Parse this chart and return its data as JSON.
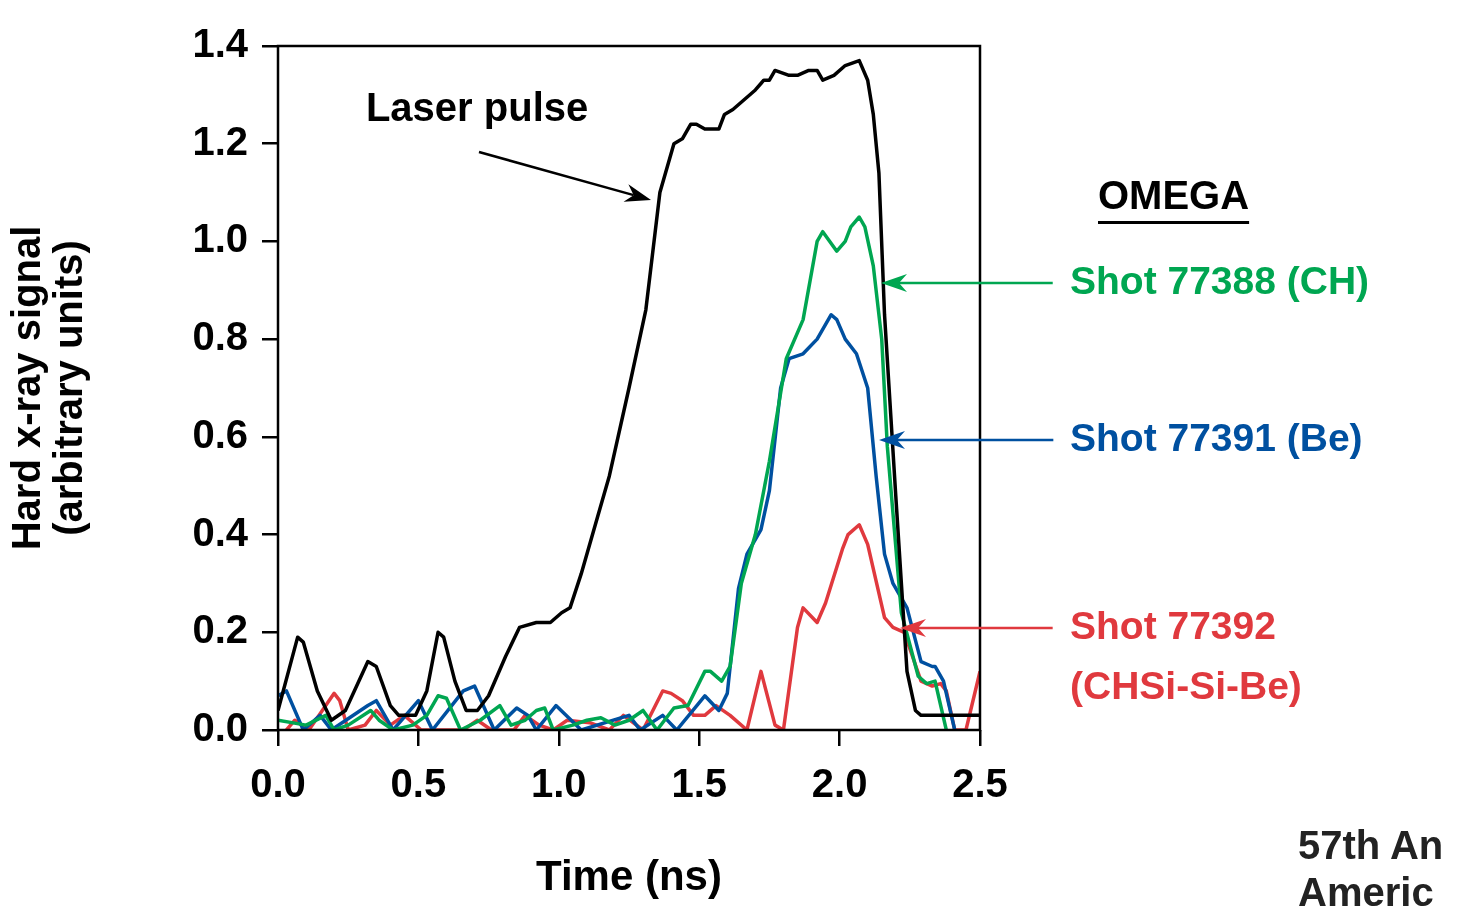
{
  "chart_data": {
    "type": "line",
    "xlabel": "Time (ns)",
    "ylabel": "Hard x-ray signal\n(arbitrary units)",
    "legend_title": "OMEGA",
    "xlim": [
      0,
      2.5
    ],
    "xticks": [
      {
        "value": 0,
        "label": "0.0"
      },
      0.5,
      {
        "value": 1,
        "label": "1.0"
      },
      1.5,
      {
        "value": 2,
        "label": "2.0"
      },
      2.5
    ],
    "ylim": [
      0,
      1.4
    ],
    "yticks": [
      {
        "value": 0,
        "label": "0.0"
      },
      0.2,
      0.4,
      0.6,
      0.8,
      {
        "value": 1,
        "label": "1.0"
      },
      1.2,
      1.4
    ],
    "marker": "none",
    "line_style": "solid",
    "legend": "right",
    "annotations": [
      {
        "text": "Laser pulse",
        "x": 1.35,
        "y": 1.08
      },
      "57th An",
      "Americ"
    ],
    "series": [
      {
        "color": "#000000",
        "x": [
          0,
          0.07,
          0.09,
          0.14,
          0.19,
          0.24,
          0.32,
          0.35,
          0.4,
          0.43,
          0.49,
          0.53,
          0.57,
          0.59,
          0.63,
          0.67,
          0.71,
          0.75,
          0.81,
          0.86,
          0.92,
          0.97,
          1.01,
          1.04,
          1.08,
          1.14,
          1.18,
          1.25,
          1.31,
          1.36,
          1.41,
          1.44,
          1.47,
          1.49,
          1.52,
          1.57,
          1.59,
          1.62,
          1.66,
          1.7,
          1.73,
          1.75,
          1.77,
          1.82,
          1.85,
          1.89,
          1.92,
          1.94,
          1.98,
          2.02,
          2.07,
          2.1,
          2.12,
          2.14,
          2.16,
          2.2,
          2.24,
          2.27,
          2.29,
          2.5
        ],
        "values": [
          0.04,
          0.19,
          0.18,
          0.08,
          0.02,
          0.04,
          0.14,
          0.13,
          0.05,
          0.03,
          0.03,
          0.08,
          0.2,
          0.19,
          0.1,
          0.04,
          0.04,
          0.07,
          0.15,
          0.21,
          0.22,
          0.22,
          0.24,
          0.25,
          0.32,
          0.44,
          0.52,
          0.7,
          0.86,
          1.1,
          1.2,
          1.21,
          1.24,
          1.24,
          1.23,
          1.23,
          1.26,
          1.27,
          1.29,
          1.31,
          1.33,
          1.33,
          1.35,
          1.34,
          1.34,
          1.35,
          1.35,
          1.33,
          1.34,
          1.36,
          1.37,
          1.33,
          1.26,
          1.14,
          0.85,
          0.48,
          0.12,
          0.04,
          0.03,
          0.03
        ]
      },
      {
        "name": "Shot 77388 (CH)",
        "color": "#00a651",
        "x": [
          0,
          0.1,
          0.17,
          0.2,
          0.25,
          0.33,
          0.36,
          0.41,
          0.48,
          0.53,
          0.57,
          0.6,
          0.65,
          0.72,
          0.79,
          0.83,
          0.88,
          0.92,
          0.95,
          0.98,
          1.05,
          1.1,
          1.15,
          1.2,
          1.25,
          1.3,
          1.35,
          1.41,
          1.46,
          1.52,
          1.54,
          1.58,
          1.61,
          1.65,
          1.7,
          1.75,
          1.81,
          1.87,
          1.92,
          1.94,
          1.99,
          2.02,
          2.04,
          2.07,
          2.09,
          2.12,
          2.15,
          2.17,
          2.22,
          2.28,
          2.31,
          2.34,
          2.38
        ],
        "values": [
          0.02,
          0.01,
          0.03,
          0,
          0.01,
          0.04,
          0.02,
          0,
          0.01,
          0.03,
          0.07,
          0.065,
          0,
          0.02,
          0.05,
          0.01,
          0.02,
          0.04,
          0.045,
          0,
          0.01,
          0.02,
          0.025,
          0.01,
          0.02,
          0.04,
          0,
          0.045,
          0.05,
          0.12,
          0.12,
          0.1,
          0.13,
          0.3,
          0.4,
          0.55,
          0.76,
          0.84,
          1.0,
          1.02,
          0.98,
          1.0,
          1.03,
          1.05,
          1.03,
          0.95,
          0.8,
          0.58,
          0.24,
          0.11,
          0.095,
          0.1,
          0
        ]
      },
      {
        "name": "Shot 77391 (Be)",
        "color": "#0050a0",
        "x": [
          0,
          0.03,
          0.09,
          0.15,
          0.19,
          0.32,
          0.35,
          0.41,
          0.5,
          0.55,
          0.66,
          0.7,
          0.77,
          0.85,
          0.89,
          0.92,
          0.99,
          1.08,
          1.25,
          1.29,
          1.37,
          1.42,
          1.52,
          1.57,
          1.6,
          1.64,
          1.67,
          1.72,
          1.75,
          1.79,
          1.82,
          1.87,
          1.92,
          1.97,
          1.99,
          2.02,
          2.06,
          2.1,
          2.13,
          2.16,
          2.19,
          2.24,
          2.29,
          2.33,
          2.34,
          2.37,
          2.41
        ],
        "values": [
          0.07,
          0.08,
          0,
          0.03,
          0,
          0.05,
          0.06,
          0,
          0.06,
          0,
          0.08,
          0.09,
          0,
          0.045,
          0.03,
          0,
          0.05,
          0,
          0.03,
          0,
          0.03,
          0,
          0.07,
          0.04,
          0.075,
          0.29,
          0.36,
          0.41,
          0.49,
          0.7,
          0.76,
          0.77,
          0.8,
          0.85,
          0.84,
          0.8,
          0.77,
          0.7,
          0.52,
          0.36,
          0.3,
          0.25,
          0.14,
          0.13,
          0.13,
          0.1,
          0
        ]
      },
      {
        "name": "Shot 77392 (CHSi-Si-Be)",
        "color": "#e0393e",
        "x": [
          0.03,
          0.06,
          0.11,
          0.2,
          0.22,
          0.25,
          0.31,
          0.35,
          0.4,
          0.45,
          0.51,
          0.66,
          0.71,
          0.76,
          0.84,
          0.88,
          0.93,
          0.98,
          1.03,
          1.11,
          1.18,
          1.23,
          1.3,
          1.37,
          1.4,
          1.44,
          1.48,
          1.52,
          1.56,
          1.61,
          1.67,
          1.72,
          1.77,
          1.8,
          1.85,
          1.87,
          1.92,
          1.95,
          2.01,
          2.03,
          2.07,
          2.1,
          2.16,
          2.19,
          2.23,
          2.26,
          2.29,
          2.33,
          2.36,
          2.38,
          2.41,
          2.45,
          2.5
        ],
        "values": [
          0,
          0.02,
          0,
          0.075,
          0.06,
          0,
          0.01,
          0.04,
          0.01,
          0.03,
          0,
          0,
          0.02,
          0,
          0,
          0.03,
          0.01,
          0,
          0.02,
          0.015,
          0,
          0.03,
          0,
          0.08,
          0.075,
          0.06,
          0.03,
          0.03,
          0.05,
          0.03,
          0,
          0.12,
          0.01,
          0,
          0.21,
          0.25,
          0.22,
          0.26,
          0.37,
          0.4,
          0.42,
          0.38,
          0.23,
          0.21,
          0.2,
          0.15,
          0.1,
          0.09,
          0.095,
          0.08,
          0,
          0,
          0.12
        ]
      }
    ]
  }
}
